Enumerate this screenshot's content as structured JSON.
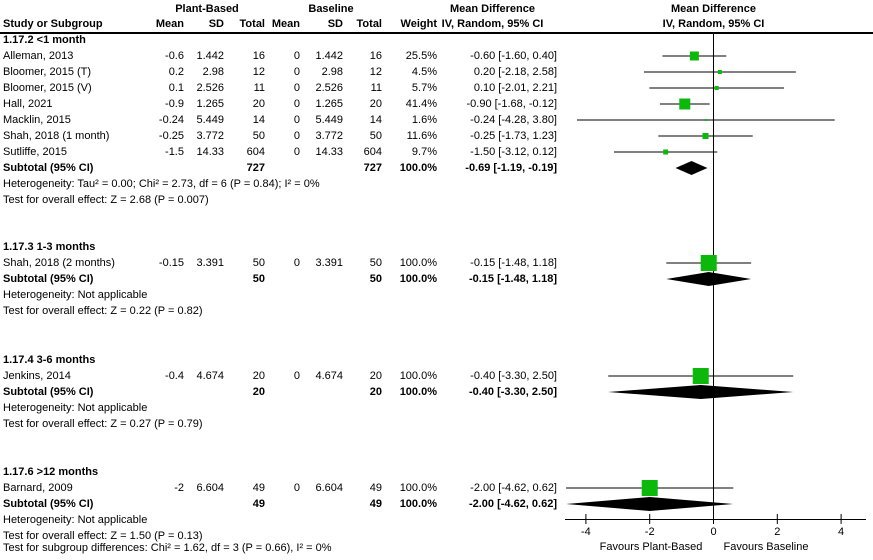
{
  "figure": {
    "headers": {
      "group1": "Plant-Based",
      "group2": "Baseline",
      "study_col": "Study or Subgroup",
      "mean_col": "Mean",
      "sd_col": "SD",
      "total_col": "Total",
      "weight_col": "Weight",
      "md_title": "Mean Difference",
      "md_subtitle": "IV, Random, 95% CI"
    }
  },
  "chart_data": {
    "type": "forest",
    "effect_measure": "Mean Difference, IV, Random, 95% CI",
    "xlim": [
      -4.7,
      4.8
    ],
    "x_ticks": [
      -4,
      -2,
      0,
      2,
      4
    ],
    "x_left_label": "Favours Plant-Based",
    "x_right_label": "Favours Baseline",
    "colors": {
      "marker": "#0cb80c",
      "diamond": "#000000",
      "line": "#000000",
      "text": "#000000"
    },
    "sections": [
      {
        "label": "1.17.2 <1 month",
        "studies": [
          {
            "name": "Alleman, 2013",
            "mean1": "-0.6",
            "sd1": "1.442",
            "total1": "16",
            "mean2": "0",
            "sd2": "1.442",
            "total2": "16",
            "weight": "25.5%",
            "weight_pct": 25.5,
            "ci_text": "-0.60 [-1.60, 0.40]",
            "est": -0.6,
            "lo": -1.6,
            "hi": 0.4
          },
          {
            "name": "Bloomer, 2015 (T)",
            "mean1": "0.2",
            "sd1": "2.98",
            "total1": "12",
            "mean2": "0",
            "sd2": "2.98",
            "total2": "12",
            "weight": "4.5%",
            "weight_pct": 4.5,
            "ci_text": "0.20 [-2.18, 2.58]",
            "est": 0.2,
            "lo": -2.18,
            "hi": 2.58
          },
          {
            "name": "Bloomer, 2015 (V)",
            "mean1": "0.1",
            "sd1": "2.526",
            "total1": "11",
            "mean2": "0",
            "sd2": "2.526",
            "total2": "11",
            "weight": "5.7%",
            "weight_pct": 5.7,
            "ci_text": "0.10 [-2.01, 2.21]",
            "est": 0.1,
            "lo": -2.01,
            "hi": 2.21
          },
          {
            "name": "Hall, 2021",
            "mean1": "-0.9",
            "sd1": "1.265",
            "total1": "20",
            "mean2": "0",
            "sd2": "1.265",
            "total2": "20",
            "weight": "41.4%",
            "weight_pct": 41.4,
            "ci_text": "-0.90 [-1.68, -0.12]",
            "est": -0.9,
            "lo": -1.68,
            "hi": -0.12
          },
          {
            "name": "Macklin, 2015",
            "mean1": "-0.24",
            "sd1": "5.449",
            "total1": "14",
            "mean2": "0",
            "sd2": "5.449",
            "total2": "14",
            "weight": "1.6%",
            "weight_pct": 1.6,
            "ci_text": "-0.24 [-4.28, 3.80]",
            "est": -0.24,
            "lo": -4.28,
            "hi": 3.8
          },
          {
            "name": "Shah, 2018 (1 month)",
            "mean1": "-0.25",
            "sd1": "3.772",
            "total1": "50",
            "mean2": "0",
            "sd2": "3.772",
            "total2": "50",
            "weight": "11.6%",
            "weight_pct": 11.6,
            "ci_text": "-0.25 [-1.73, 1.23]",
            "est": -0.25,
            "lo": -1.73,
            "hi": 1.23
          },
          {
            "name": "Sutliffe, 2015",
            "mean1": "-1.5",
            "sd1": "14.33",
            "total1": "604",
            "mean2": "0",
            "sd2": "14.33",
            "total2": "604",
            "weight": "9.7%",
            "weight_pct": 9.7,
            "ci_text": "-1.50 [-3.12, 0.12]",
            "est": -1.5,
            "lo": -3.12,
            "hi": 0.12
          }
        ],
        "subtotal": {
          "label": "Subtotal (95% CI)",
          "total1": "727",
          "total2": "727",
          "weight": "100.0%",
          "ci_text": "-0.69 [-1.19, -0.19]",
          "est": -0.69,
          "lo": -1.19,
          "hi": -0.19
        },
        "heterogeneity": "Heterogeneity: Tau² = 0.00; Chi² = 2.73, df = 6 (P = 0.84); I² = 0%",
        "overall_effect": "Test for overall effect: Z = 2.68 (P = 0.007)"
      },
      {
        "label": "1.17.3 1-3 months",
        "studies": [
          {
            "name": "Shah, 2018 (2 months)",
            "mean1": "-0.15",
            "sd1": "3.391",
            "total1": "50",
            "mean2": "0",
            "sd2": "3.391",
            "total2": "50",
            "weight": "100.0%",
            "weight_pct": 100.0,
            "ci_text": "-0.15 [-1.48, 1.18]",
            "est": -0.15,
            "lo": -1.48,
            "hi": 1.18
          }
        ],
        "subtotal": {
          "label": "Subtotal (95% CI)",
          "total1": "50",
          "total2": "50",
          "weight": "100.0%",
          "ci_text": "-0.15 [-1.48, 1.18]",
          "est": -0.15,
          "lo": -1.48,
          "hi": 1.18
        },
        "heterogeneity": "Heterogeneity: Not applicable",
        "overall_effect": "Test for overall effect: Z = 0.22 (P = 0.82)"
      },
      {
        "label": "1.17.4 3-6 months",
        "studies": [
          {
            "name": "Jenkins, 2014",
            "mean1": "-0.4",
            "sd1": "4.674",
            "total1": "20",
            "mean2": "0",
            "sd2": "4.674",
            "total2": "20",
            "weight": "100.0%",
            "weight_pct": 100.0,
            "ci_text": "-0.40 [-3.30, 2.50]",
            "est": -0.4,
            "lo": -3.3,
            "hi": 2.5
          }
        ],
        "subtotal": {
          "label": "Subtotal (95% CI)",
          "total1": "20",
          "total2": "20",
          "weight": "100.0%",
          "ci_text": "-0.40 [-3.30, 2.50]",
          "est": -0.4,
          "lo": -3.3,
          "hi": 2.5
        },
        "heterogeneity": "Heterogeneity: Not applicable",
        "overall_effect": "Test for overall effect: Z = 0.27 (P = 0.79)"
      },
      {
        "label": "1.17.6 >12 months",
        "studies": [
          {
            "name": "Barnard, 2009",
            "mean1": "-2",
            "sd1": "6.604",
            "total1": "49",
            "mean2": "0",
            "sd2": "6.604",
            "total2": "49",
            "weight": "100.0%",
            "weight_pct": 100.0,
            "ci_text": "-2.00 [-4.62, 0.62]",
            "est": -2.0,
            "lo": -4.62,
            "hi": 0.62
          }
        ],
        "subtotal": {
          "label": "Subtotal (95% CI)",
          "total1": "49",
          "total2": "49",
          "weight": "100.0%",
          "ci_text": "-2.00 [-4.62, 0.62]",
          "est": -2.0,
          "lo": -4.62,
          "hi": 0.62
        },
        "heterogeneity": "Heterogeneity: Not applicable",
        "overall_effect": "Test for overall effect: Z = 1.50 (P = 0.13)"
      }
    ],
    "footer": "Test for subgroup differences: Chi² = 1.62, df = 3 (P = 0.66), I² = 0%"
  }
}
